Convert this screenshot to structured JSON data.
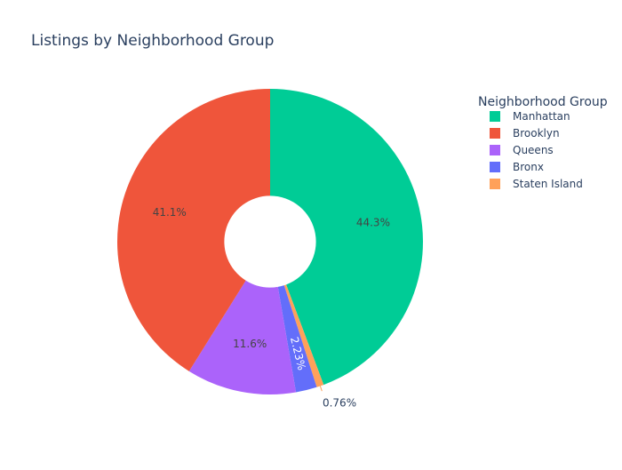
{
  "chart_data": {
    "type": "pie",
    "hole": 0.3,
    "title": "Listings by Neighborhood Group",
    "legend": {
      "title": "Neighborhood Group",
      "placement": "top-right"
    },
    "slices": [
      {
        "label": "Manhattan",
        "percent": 44.3,
        "percent_label": "44.3%",
        "color": "#00cc96",
        "text_position": "inside"
      },
      {
        "label": "Brooklyn",
        "percent": 41.1,
        "percent_label": "41.1%",
        "color": "#ef553b",
        "text_position": "inside"
      },
      {
        "label": "Queens",
        "percent": 11.6,
        "percent_label": "11.6%",
        "color": "#ab63fa",
        "text_position": "inside"
      },
      {
        "label": "Bronx",
        "percent": 2.23,
        "percent_label": "2.23%",
        "color": "#636efa",
        "text_position": "inside-rotated"
      },
      {
        "label": "Staten Island",
        "percent": 0.76,
        "percent_label": "0.76%",
        "color": "#ffa15a",
        "text_position": "outside"
      }
    ],
    "direction": "clockwise",
    "start": "top",
    "draw_order": [
      "Manhattan",
      "Staten Island",
      "Bronx",
      "Queens",
      "Brooklyn"
    ]
  }
}
